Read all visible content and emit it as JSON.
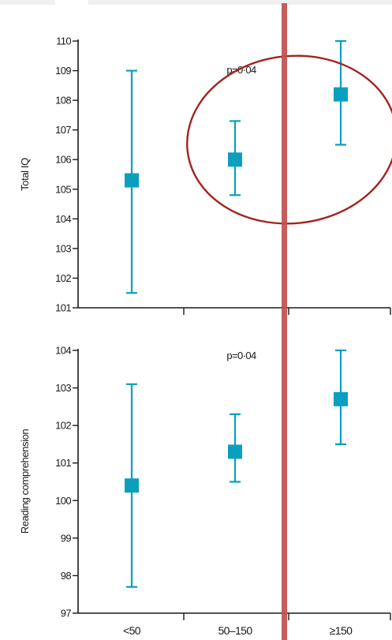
{
  "chart_data": [
    {
      "type": "scatter",
      "ylabel": "Total IQ",
      "annotation": "p=0·04",
      "ylim": [
        101,
        110
      ],
      "yticks": [
        "110",
        "109",
        "108",
        "107",
        "106",
        "105",
        "104",
        "103",
        "102",
        "101"
      ],
      "categories": [
        "<50",
        "50–150",
        "≥150"
      ],
      "points": [
        {
          "category": "<50",
          "value": 105.3,
          "lower": 101.5,
          "upper": 109.0
        },
        {
          "category": "50–150",
          "value": 106.0,
          "lower": 104.8,
          "upper": 107.3
        },
        {
          "category": "≥150",
          "value": 108.2,
          "lower": 106.5,
          "upper": 110.0
        }
      ]
    },
    {
      "type": "scatter",
      "ylabel": "Reading comprehension",
      "annotation": "p=0·04",
      "ylim": [
        97,
        104
      ],
      "yticks": [
        "104",
        "103",
        "102",
        "101",
        "100",
        "99",
        "98",
        "97"
      ],
      "categories": [
        "<50",
        "50–150",
        "≥150"
      ],
      "points": [
        {
          "category": "<50",
          "value": 100.4,
          "lower": 97.7,
          "upper": 103.1
        },
        {
          "category": "50–150",
          "value": 101.3,
          "lower": 100.5,
          "upper": 102.3
        },
        {
          "category": "≥150",
          "value": 102.7,
          "lower": 101.5,
          "upper": 104.0
        }
      ]
    }
  ],
  "colors": {
    "marker": "#0a9fbf",
    "axis": "#1a1a1a",
    "overlay_line": "#c0504d",
    "overlay_circle": "#a3231f"
  },
  "overlay": {
    "circle_label": "annotation-circle",
    "line_label": "vertical-divider-line"
  }
}
